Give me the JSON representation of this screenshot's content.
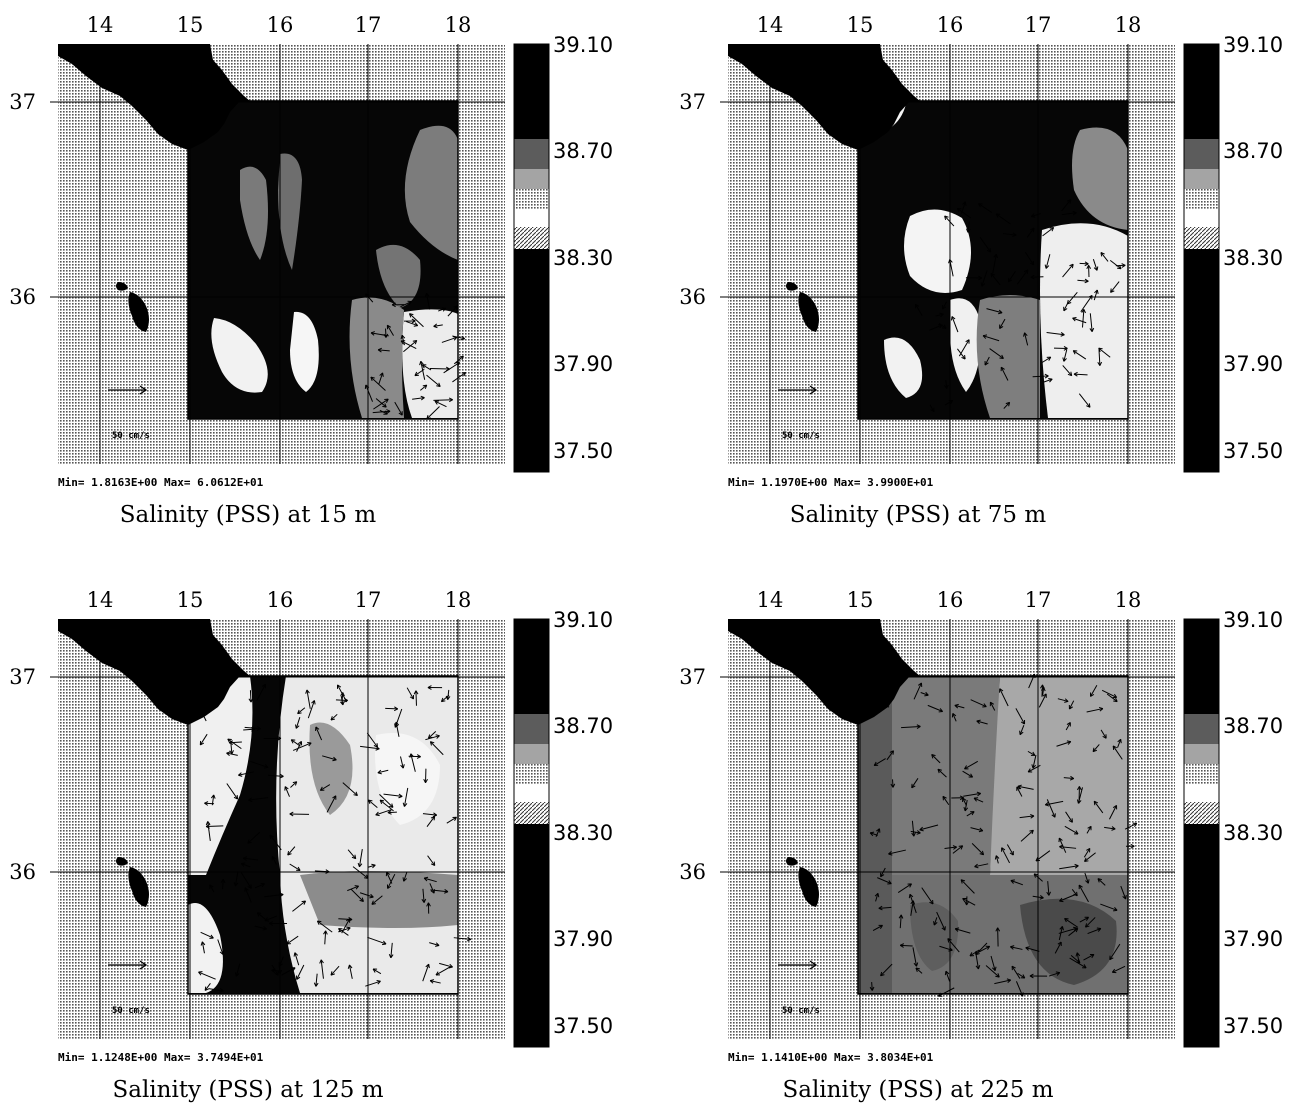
{
  "colors": {
    "land": "#000000",
    "sea_background": "#d2d2d2",
    "field_dark": "#060606",
    "grid": "#000000"
  },
  "vector_scale_label": "50 cm/s",
  "lon_ticks": [
    "14",
    "15",
    "16",
    "17",
    "18"
  ],
  "lat_ticks": [
    "37",
    "36"
  ],
  "colorbar_labels": [
    "39.10",
    "38.70",
    "38.30",
    "37.90",
    "37.50"
  ],
  "panels": [
    {
      "title": "Salinity (PSS) at 15 m",
      "stats": "Min= 1.8163E+00  Max= 6.0612E+01",
      "scale_label": "50 cm/s"
    },
    {
      "title": "Salinity (PSS) at 75 m",
      "stats": "Min= 1.1970E+00  Max= 3.9900E+01",
      "scale_label": "50 cm/s"
    },
    {
      "title": "Salinity (PSS) at 125 m",
      "stats": "Min= 1.1248E+00  Max= 3.7494E+01",
      "scale_label": "50 cm/s"
    },
    {
      "title": "Salinity (PSS) at 225 m",
      "stats": "Min= 1.1410E+00  Max= 3.8034E+01",
      "scale_label": "50 cm/s"
    }
  ]
}
